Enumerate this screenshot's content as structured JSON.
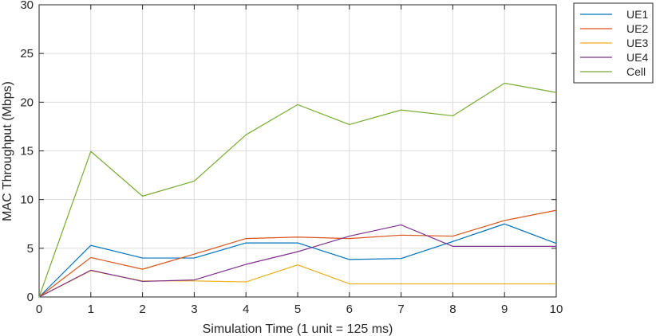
{
  "chart_data": {
    "type": "line",
    "xlabel": "Simulation Time (1 unit = 125 ms)",
    "ylabel": "MAC Throughput (Mbps)",
    "xlim": [
      0,
      10
    ],
    "ylim": [
      0,
      30
    ],
    "xticks": [
      0,
      1,
      2,
      3,
      4,
      5,
      6,
      7,
      8,
      9,
      10
    ],
    "yticks": [
      0,
      5,
      10,
      15,
      20,
      25,
      30
    ],
    "grid": true,
    "legend_position": "outside-top-right",
    "x": [
      0,
      1,
      2,
      3,
      4,
      5,
      6,
      7,
      8,
      9,
      10
    ],
    "series": [
      {
        "name": "UE1",
        "color": "#0072BD",
        "values": [
          0,
          5.3,
          4.0,
          4.0,
          5.55,
          5.55,
          3.85,
          3.95,
          5.7,
          7.5,
          5.5
        ]
      },
      {
        "name": "UE2",
        "color": "#D95319",
        "values": [
          0,
          4.05,
          2.85,
          4.4,
          6.0,
          6.15,
          6.0,
          6.35,
          6.25,
          7.85,
          8.9
        ]
      },
      {
        "name": "UE3",
        "color": "#EDB120",
        "values": [
          0,
          2.7,
          1.65,
          1.65,
          1.55,
          3.3,
          1.35,
          1.35,
          1.35,
          1.35,
          1.35
        ]
      },
      {
        "name": "UE4",
        "color": "#7E2F8E",
        "values": [
          0,
          2.75,
          1.6,
          1.75,
          3.35,
          4.65,
          6.25,
          7.4,
          5.2,
          5.2,
          5.2
        ]
      },
      {
        "name": "Cell",
        "color": "#77AC30",
        "values": [
          0,
          14.95,
          10.35,
          11.9,
          16.65,
          19.75,
          17.7,
          19.2,
          18.6,
          21.95,
          21.0
        ]
      }
    ]
  }
}
